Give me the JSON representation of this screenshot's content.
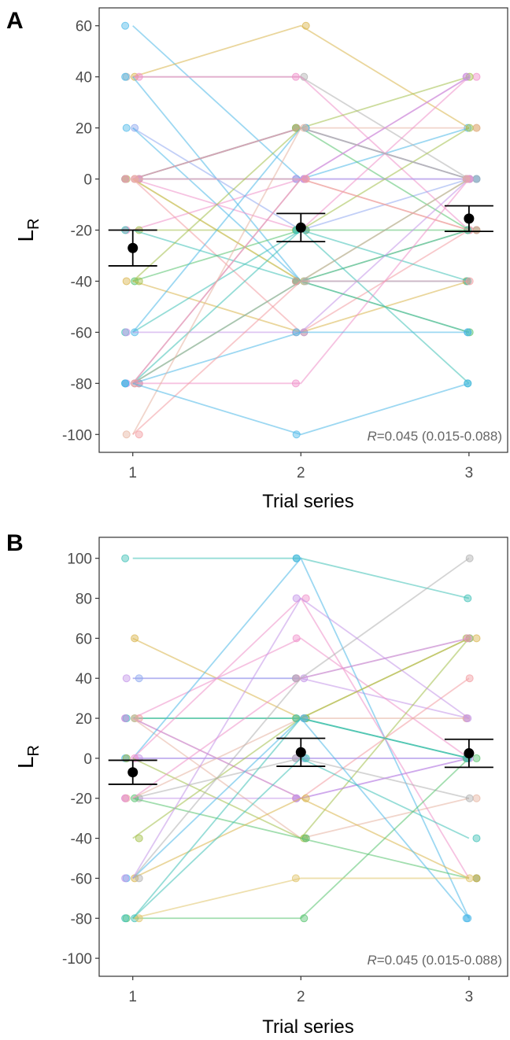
{
  "colors": {
    "subject_palette": [
      "#e6b3a0",
      "#d9b44a",
      "#a3c04a",
      "#55c36e",
      "#3fc1b6",
      "#4cb8e8",
      "#8fa8f0",
      "#c394e8",
      "#ef8fc9",
      "#f29ba0",
      "#b0b0b0",
      "#e0c46a"
    ],
    "mean_point": "#000000",
    "panel_border": "#333333"
  },
  "chart_data": [
    {
      "type": "scatter",
      "panel_label": "A",
      "title": "",
      "xlabel": "Trial series",
      "ylabel_main": "L",
      "ylabel_sub": "R",
      "x_ticks": [
        "1",
        "2",
        "3"
      ],
      "y_ticks": [
        "60",
        "40",
        "20",
        "0",
        "-20",
        "-40",
        "-60",
        "-80",
        "-100"
      ],
      "ylim": [
        -107,
        67
      ],
      "xlim": [
        0.8,
        3.23
      ],
      "annotation": {
        "r_label": "R",
        "r_text": "=0.045 (0.015-0.088)"
      },
      "means": [
        {
          "x": 1,
          "mean": -27,
          "lower": -34,
          "upper": -20
        },
        {
          "x": 2,
          "mean": -19,
          "lower": -24.5,
          "upper": -13.5
        },
        {
          "x": 3,
          "mean": -15.5,
          "lower": -20.5,
          "upper": -10.5
        }
      ],
      "subjects": [
        {
          "color": "#4cb8e8",
          "values": [
            60,
            0,
            20
          ]
        },
        {
          "color": "#d9b44a",
          "values": [
            40,
            60,
            20
          ]
        },
        {
          "color": "#b0b0b0",
          "values": [
            40,
            40,
            0
          ]
        },
        {
          "color": "#ef8fc9",
          "values": [
            40,
            40,
            -20
          ]
        },
        {
          "color": "#4cb8e8",
          "values": [
            40,
            -40,
            -60
          ]
        },
        {
          "color": "#8fa8f0",
          "values": [
            20,
            -20,
            0
          ]
        },
        {
          "color": "#4cb8e8",
          "values": [
            20,
            -40,
            -40
          ]
        },
        {
          "color": "#3fc1b6",
          "values": [
            0,
            20,
            0
          ]
        },
        {
          "color": "#55c36e",
          "values": [
            0,
            20,
            -20
          ]
        },
        {
          "color": "#e6b3a0",
          "values": [
            0,
            20,
            20
          ]
        },
        {
          "color": "#8fa8f0",
          "values": [
            0,
            0,
            0
          ]
        },
        {
          "color": "#c394e8",
          "values": [
            0,
            0,
            0
          ]
        },
        {
          "color": "#a3c04a",
          "values": [
            0,
            -40,
            -20
          ]
        },
        {
          "color": "#ef8fc9",
          "values": [
            0,
            -20,
            40
          ]
        },
        {
          "color": "#e0c46a",
          "values": [
            0,
            -40,
            0
          ]
        },
        {
          "color": "#f29ba0",
          "values": [
            0,
            -60,
            -20
          ]
        },
        {
          "color": "#ef8fc9",
          "values": [
            0,
            20,
            0
          ]
        },
        {
          "color": "#e6b3a0",
          "values": [
            0,
            0,
            -20
          ]
        },
        {
          "color": "#ef8fc9",
          "values": [
            -20,
            0,
            40
          ]
        },
        {
          "color": "#a3c04a",
          "values": [
            -20,
            -20,
            20
          ]
        },
        {
          "color": "#3fc1b6",
          "values": [
            -20,
            -40,
            -20
          ]
        },
        {
          "color": "#55c36e",
          "values": [
            -40,
            -20,
            -20
          ]
        },
        {
          "color": "#d9b44a",
          "values": [
            -40,
            -60,
            -40
          ]
        },
        {
          "color": "#a3c04a",
          "values": [
            -40,
            20,
            40
          ]
        },
        {
          "color": "#3fc1b6",
          "values": [
            -60,
            -20,
            -40
          ]
        },
        {
          "color": "#4cb8e8",
          "values": [
            -60,
            20,
            0
          ]
        },
        {
          "color": "#c394e8",
          "values": [
            -60,
            -60,
            0
          ]
        },
        {
          "color": "#55c36e",
          "values": [
            -80,
            -40,
            -60
          ]
        },
        {
          "color": "#3fc1b6",
          "values": [
            -80,
            -20,
            -80
          ]
        },
        {
          "color": "#b0b0b0",
          "values": [
            -80,
            -40,
            0
          ]
        },
        {
          "color": "#c394e8",
          "values": [
            -80,
            0,
            40
          ]
        },
        {
          "color": "#ef8fc9",
          "values": [
            -80,
            -80,
            0
          ]
        },
        {
          "color": "#4cb8e8",
          "values": [
            -80,
            -60,
            -60
          ]
        },
        {
          "color": "#f29ba0",
          "values": [
            -80,
            0,
            -20
          ]
        },
        {
          "color": "#e6b3a0",
          "values": [
            -100,
            20,
            0
          ]
        },
        {
          "color": "#f29ba0",
          "values": [
            -100,
            -40,
            -40
          ]
        },
        {
          "color": "#4cb8e8",
          "values": [
            -80,
            -100,
            -80
          ]
        }
      ]
    },
    {
      "type": "scatter",
      "panel_label": "B",
      "title": "",
      "xlabel": "Trial series",
      "ylabel_main": "L",
      "ylabel_sub": "R",
      "x_ticks": [
        "1",
        "2",
        "3"
      ],
      "y_ticks": [
        "100",
        "80",
        "60",
        "40",
        "20",
        "0",
        "-20",
        "-40",
        "-60",
        "-80",
        "-100"
      ],
      "ylim": [
        -109,
        110.5
      ],
      "xlim": [
        0.8,
        3.23
      ],
      "annotation": {
        "r_label": "R",
        "r_text": "=0.045 (0.015-0.088)"
      },
      "means": [
        {
          "x": 1,
          "mean": -7,
          "lower": -13,
          "upper": -1
        },
        {
          "x": 2,
          "mean": 3,
          "lower": -4,
          "upper": 10
        },
        {
          "x": 3,
          "mean": 2.5,
          "lower": -4.5,
          "upper": 9.5
        }
      ],
      "subjects": [
        {
          "color": "#3fc1b6",
          "values": [
            100,
            100,
            80
          ]
        },
        {
          "color": "#d9b44a",
          "values": [
            60,
            20,
            60
          ]
        },
        {
          "color": "#c394e8",
          "values": [
            40,
            40,
            20
          ]
        },
        {
          "color": "#8fa8f0",
          "values": [
            40,
            40,
            60
          ]
        },
        {
          "color": "#ef8fc9",
          "values": [
            20,
            60,
            0
          ]
        },
        {
          "color": "#55c36e",
          "values": [
            20,
            20,
            0
          ]
        },
        {
          "color": "#3fc1b6",
          "values": [
            20,
            20,
            0
          ]
        },
        {
          "color": "#f29ba0",
          "values": [
            20,
            -20,
            40
          ]
        },
        {
          "color": "#c394e8",
          "values": [
            20,
            -20,
            0
          ]
        },
        {
          "color": "#e6b3a0",
          "values": [
            20,
            -40,
            -20
          ]
        },
        {
          "color": "#8fa8f0",
          "values": [
            0,
            0,
            0
          ]
        },
        {
          "color": "#c394e8",
          "values": [
            0,
            0,
            0
          ]
        },
        {
          "color": "#4cb8e8",
          "values": [
            0,
            100,
            -80
          ]
        },
        {
          "color": "#ef8fc9",
          "values": [
            0,
            80,
            -60
          ]
        },
        {
          "color": "#a3c04a",
          "values": [
            0,
            -40,
            60
          ]
        },
        {
          "color": "#b0b0b0",
          "values": [
            -20,
            0,
            -20
          ]
        },
        {
          "color": "#c394e8",
          "values": [
            -20,
            -20,
            0
          ]
        },
        {
          "color": "#55c36e",
          "values": [
            -20,
            -40,
            -60
          ]
        },
        {
          "color": "#e6b3a0",
          "values": [
            -20,
            20,
            20
          ]
        },
        {
          "color": "#a3c04a",
          "values": [
            -40,
            20,
            60
          ]
        },
        {
          "color": "#ef8fc9",
          "values": [
            -20,
            40,
            60
          ]
        },
        {
          "color": "#d9b44a",
          "values": [
            -60,
            -20,
            -60
          ]
        },
        {
          "color": "#4cb8e8",
          "values": [
            -60,
            20,
            -80
          ]
        },
        {
          "color": "#b0b0b0",
          "values": [
            -60,
            40,
            100
          ]
        },
        {
          "color": "#c394e8",
          "values": [
            -60,
            80,
            20
          ]
        },
        {
          "color": "#3fc1b6",
          "values": [
            -80,
            0,
            -40
          ]
        },
        {
          "color": "#55c36e",
          "values": [
            -80,
            -80,
            0
          ]
        },
        {
          "color": "#e0c46a",
          "values": [
            -80,
            -60,
            -60
          ]
        },
        {
          "color": "#3fc1b6",
          "values": [
            -80,
            20,
            0
          ]
        }
      ]
    }
  ]
}
